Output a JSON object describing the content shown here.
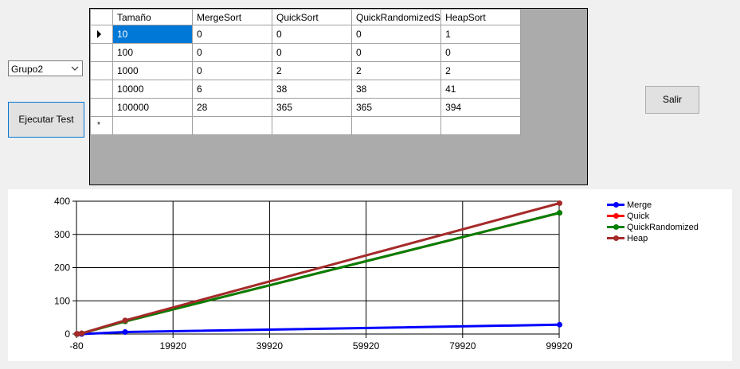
{
  "controls": {
    "group_value": "Grupo2",
    "run_label": "Ejecutar Test",
    "exit_label": "Salir"
  },
  "grid": {
    "columns": [
      "Tamaño",
      "MergeSort",
      "QuickSort",
      "QuickRandomizedS",
      "HeapSort"
    ],
    "rows": [
      [
        "10",
        "0",
        "0",
        "0",
        "1"
      ],
      [
        "100",
        "0",
        "0",
        "0",
        "0"
      ],
      [
        "1000",
        "0",
        "2",
        "2",
        "2"
      ],
      [
        "10000",
        "6",
        "38",
        "38",
        "41"
      ],
      [
        "100000",
        "28",
        "365",
        "365",
        "394"
      ]
    ],
    "selected_cell": [
      0,
      0
    ]
  },
  "chart_data": {
    "type": "line",
    "x": [
      10,
      100,
      1000,
      10000,
      100000
    ],
    "series": [
      {
        "name": "Merge",
        "color": "#0000ff",
        "values": [
          0,
          0,
          0,
          6,
          28
        ]
      },
      {
        "name": "Quick",
        "color": "#ff0000",
        "values": [
          0,
          0,
          2,
          38,
          365
        ]
      },
      {
        "name": "QuickRandomized",
        "color": "#008000",
        "values": [
          0,
          0,
          2,
          38,
          365
        ]
      },
      {
        "name": "Heap",
        "color": "#a52a2a",
        "values": [
          1,
          0,
          2,
          41,
          394
        ]
      }
    ],
    "xlim": [
      -80,
      99920
    ],
    "ylim": [
      0,
      400
    ],
    "x_ticks": [
      "-80",
      "19920",
      "39920",
      "59920",
      "79920",
      "99920"
    ],
    "y_ticks": [
      "0",
      "100",
      "200",
      "300",
      "400"
    ],
    "grid": true,
    "legend_position": "right",
    "title": "",
    "xlabel": "",
    "ylabel": ""
  }
}
